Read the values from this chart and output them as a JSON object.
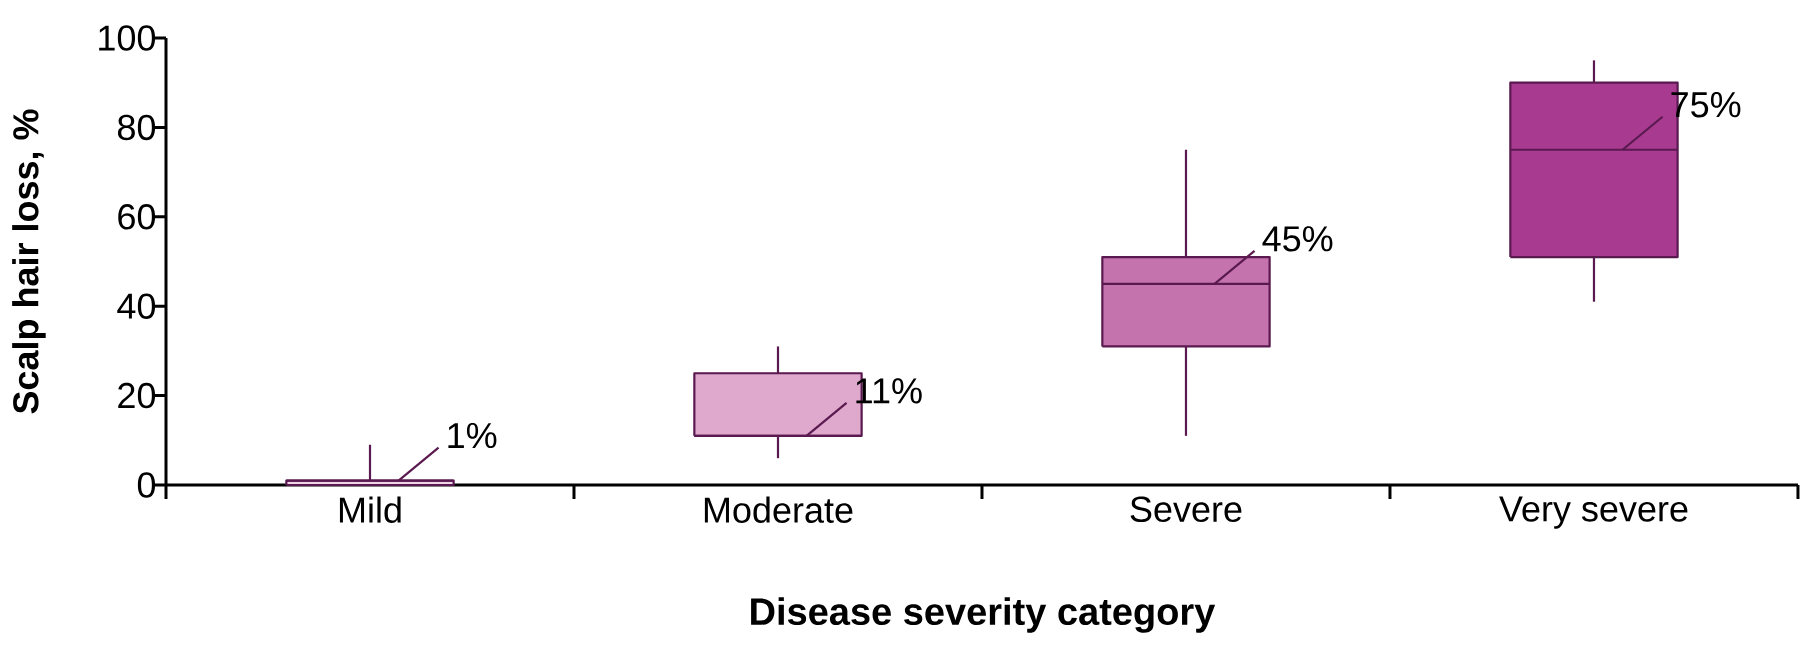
{
  "chart_data": {
    "type": "box",
    "xlabel": "Disease severity category",
    "ylabel": "Scalp hair loss, %",
    "categories": [
      "Mild",
      "Moderate",
      "Severe",
      "Very severe"
    ],
    "boxes": [
      {
        "low": 0,
        "q1": 0,
        "median": 1,
        "q3": 1,
        "high": 9
      },
      {
        "low": 6,
        "q1": 11,
        "median": 11,
        "q3": 25,
        "high": 31
      },
      {
        "low": 11,
        "q1": 31,
        "median": 45,
        "q3": 51,
        "high": 75
      },
      {
        "low": 41,
        "q1": 51,
        "median": 75,
        "q3": 90,
        "high": 95
      }
    ],
    "colors": [
      "#f0d4e8",
      "#dfa9cd",
      "#c473ad",
      "#a83a90"
    ],
    "ylim": [
      0,
      100
    ],
    "yticks": [
      0,
      20,
      40,
      60,
      80,
      100
    ],
    "annotations": [
      {
        "text": "1%",
        "x": "Mild",
        "y": 1
      },
      {
        "text": "11%",
        "x": "Moderate",
        "y": 11
      },
      {
        "text": "45%",
        "x": "Severe",
        "y": 45
      },
      {
        "text": "75%",
        "x": "Very severe",
        "y": 75
      }
    ]
  }
}
